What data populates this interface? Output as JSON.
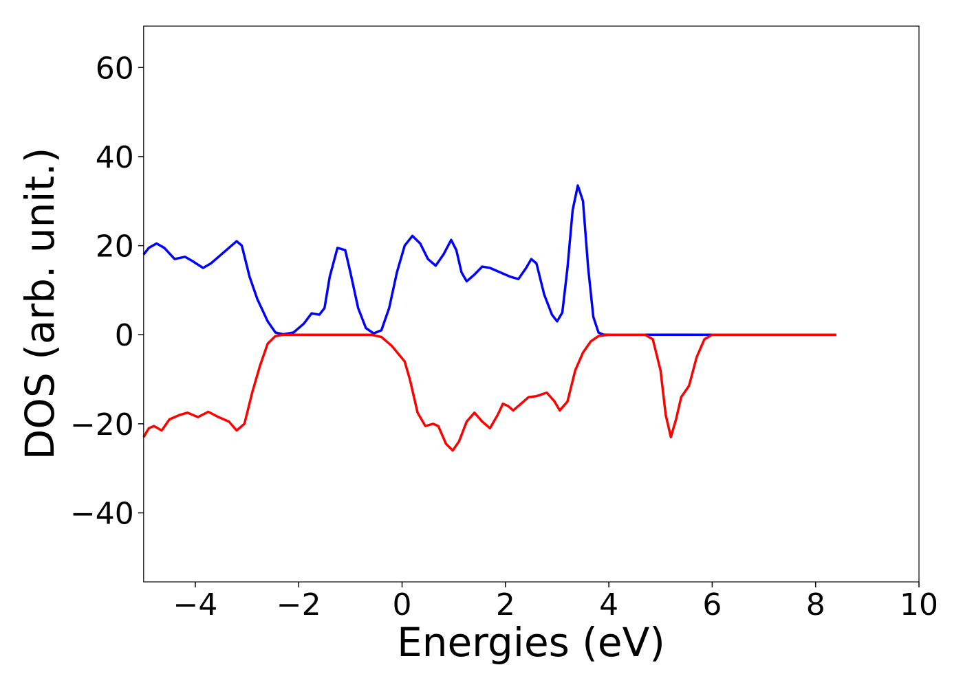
{
  "chart_data": {
    "type": "line",
    "xlabel": "Energies (eV)",
    "ylabel": "DOS (arb. unit.)",
    "xlim": [
      -5,
      10
    ],
    "ylim": [
      -55.5,
      69.3
    ],
    "xticks": [
      {
        "value": -4,
        "label": "−4"
      },
      {
        "value": -2,
        "label": "−2"
      },
      0,
      2,
      4,
      6,
      8,
      10
    ],
    "yticks": [
      {
        "value": -40,
        "label": "−40"
      },
      {
        "value": -20,
        "label": "−20"
      },
      0,
      20,
      40,
      60
    ],
    "series": [
      {
        "color": "#0000ff",
        "x": [
          -5,
          -4.9,
          -4.75,
          -4.6,
          -4.4,
          -4.2,
          -4.05,
          -3.85,
          -3.7,
          -3.5,
          -3.35,
          -3.2,
          -3.1,
          -2.95,
          -2.8,
          -2.6,
          -2.45,
          -2.3,
          -2.1,
          -1.9,
          -1.75,
          -1.6,
          -1.5,
          -1.4,
          -1.25,
          -1.1,
          -1.0,
          -0.85,
          -0.7,
          -0.55,
          -0.4,
          -0.25,
          -0.1,
          0.05,
          0.2,
          0.35,
          0.5,
          0.65,
          0.8,
          0.95,
          1.05,
          1.15,
          1.25,
          1.4,
          1.55,
          1.7,
          1.9,
          2.1,
          2.25,
          2.4,
          2.5,
          2.6,
          2.75,
          2.9,
          3.0,
          3.1,
          3.2,
          3.3,
          3.4,
          3.5,
          3.6,
          3.7,
          3.8,
          3.9,
          6.0,
          8.4
        ],
        "values": [
          18,
          19.5,
          20.5,
          19.5,
          17,
          17.5,
          16.5,
          15,
          16,
          18,
          19.5,
          21,
          20,
          13,
          8,
          3,
          0.5,
          0.1,
          0.5,
          2.5,
          4.8,
          4.5,
          6,
          13,
          19.5,
          19,
          14,
          6,
          1.5,
          0.3,
          1,
          6,
          14,
          20,
          22.2,
          20.5,
          17,
          15.5,
          18,
          21.3,
          19,
          14,
          12,
          13.5,
          15.3,
          15,
          14,
          13,
          12.5,
          15,
          17,
          16,
          9,
          4.5,
          3,
          5,
          15,
          28,
          33.5,
          30,
          15,
          4,
          0.5,
          0,
          0,
          0
        ]
      },
      {
        "color": "#ff0000",
        "x": [
          -5,
          -4.9,
          -4.8,
          -4.65,
          -4.5,
          -4.3,
          -4.15,
          -3.95,
          -3.75,
          -3.55,
          -3.35,
          -3.2,
          -3.05,
          -2.9,
          -2.75,
          -2.6,
          -2.45,
          -2.3,
          -0.6,
          -0.4,
          -0.2,
          0.05,
          0.15,
          0.3,
          0.45,
          0.6,
          0.7,
          0.85,
          0.98,
          1.1,
          1.25,
          1.4,
          1.55,
          1.7,
          1.85,
          1.95,
          2.05,
          2.15,
          2.3,
          2.45,
          2.6,
          2.8,
          2.95,
          3.05,
          3.2,
          3.35,
          3.5,
          3.65,
          3.8,
          4.0,
          4.7,
          4.85,
          5.0,
          5.1,
          5.2,
          5.3,
          5.4,
          5.55,
          5.7,
          5.85,
          6.0,
          8.4
        ],
        "values": [
          -23,
          -21,
          -20.5,
          -21.5,
          -19,
          -18,
          -17.5,
          -18.5,
          -17.3,
          -18.5,
          -19.5,
          -21.5,
          -20,
          -13,
          -7,
          -2,
          -0.3,
          0,
          0,
          -0.5,
          -2.5,
          -6,
          -10,
          -17.5,
          -20.5,
          -20,
          -20.5,
          -24.5,
          -26,
          -24,
          -19.5,
          -17.5,
          -19.5,
          -21,
          -18,
          -15.5,
          -16,
          -17,
          -15.5,
          -14,
          -13.8,
          -13,
          -15,
          -17,
          -15,
          -8,
          -4,
          -1.5,
          -0.3,
          0,
          0,
          -1,
          -8,
          -18,
          -23,
          -19,
          -14,
          -11.5,
          -5,
          -1,
          0,
          0
        ]
      }
    ]
  }
}
